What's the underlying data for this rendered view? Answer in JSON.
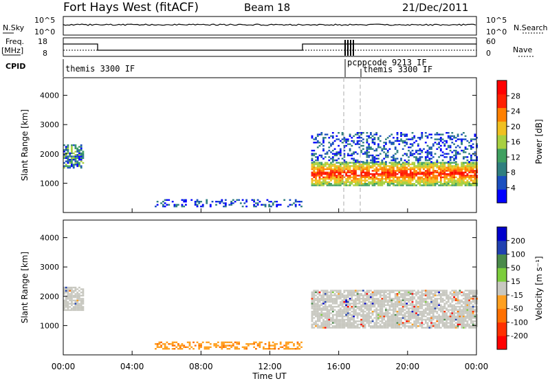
{
  "header": {
    "radar": "Fort Hays West (fitACF)",
    "beam": "Beam 18",
    "date": "21/Dec/2011"
  },
  "status_panels": {
    "noise": {
      "left_label": "N.Sky",
      "right_label": "N.Search",
      "left_ticks": [
        "10^5",
        "10^0"
      ],
      "right_ticks": [
        "10^5",
        "10^0"
      ]
    },
    "freq": {
      "left_label_1": "Freq.",
      "left_label_2": "[MHz]",
      "right_label": "Nave",
      "left_ticks": [
        "18",
        "8"
      ],
      "right_ticks": [
        "60",
        "0"
      ]
    },
    "cpid": {
      "label": "CPID",
      "segments": [
        "themis 3300 IF",
        "pcppcode 9213 IF",
        "themis 3300 IF"
      ]
    }
  },
  "chart_data": [
    {
      "type": "heatmap",
      "title": "",
      "quantity": "Power",
      "ylabel": "Slant Range [km]",
      "xlabel": "",
      "xlim": [
        "00:00",
        "00:00"
      ],
      "ylim": [
        0,
        4600
      ],
      "yticks": [
        1000,
        2000,
        3000,
        4000
      ],
      "colorbar": {
        "label": "Power [dB]",
        "ticks": [
          4,
          8,
          12,
          16,
          20,
          24,
          28
        ]
      },
      "regions": [
        {
          "t": [
            0.0,
            1.2
          ],
          "r": [
            1500,
            2300
          ],
          "level": "mixed"
        },
        {
          "t": [
            5.2,
            13.8
          ],
          "r": [
            180,
            450
          ],
          "level": "low"
        },
        {
          "t": [
            14.4,
            24.0
          ],
          "r": [
            900,
            1700
          ],
          "level": "high"
        },
        {
          "t": [
            14.4,
            24.0
          ],
          "r": [
            1700,
            2700
          ],
          "level": "low"
        }
      ]
    },
    {
      "type": "heatmap",
      "title": "",
      "quantity": "Velocity",
      "ylabel": "Slant Range [km]",
      "xlabel": "Time UT",
      "xticks": [
        "00:00",
        "04:00",
        "08:00",
        "12:00",
        "16:00",
        "20:00",
        "00:00"
      ],
      "ylim": [
        0,
        4600
      ],
      "yticks": [
        1000,
        2000,
        3000,
        4000
      ],
      "colorbar": {
        "label": "Velocity [m s⁻¹]",
        "ticks": [
          200,
          100,
          50,
          15,
          -15,
          -50,
          -100,
          -200
        ]
      },
      "regions": [
        {
          "t": [
            0.0,
            1.2
          ],
          "r": [
            1500,
            2300
          ],
          "level": "ground"
        },
        {
          "t": [
            5.2,
            13.8
          ],
          "r": [
            180,
            450
          ],
          "level": "negative"
        },
        {
          "t": [
            14.4,
            24.0
          ],
          "r": [
            900,
            2200
          ],
          "level": "ground"
        }
      ]
    }
  ],
  "colors": {
    "power_scale": [
      "#0000ff",
      "#1a4fbf",
      "#2f7f7f",
      "#3fa060",
      "#a8d040",
      "#f0c020",
      "#ff8000",
      "#ff2000",
      "#ff0000"
    ],
    "velocity_scale": [
      "#0000cc",
      "#2040b0",
      "#4a8a4a",
      "#7ccd3c",
      "#c8c8c0",
      "#ffa020",
      "#ff7000",
      "#ff3000",
      "#ff0000"
    ]
  }
}
